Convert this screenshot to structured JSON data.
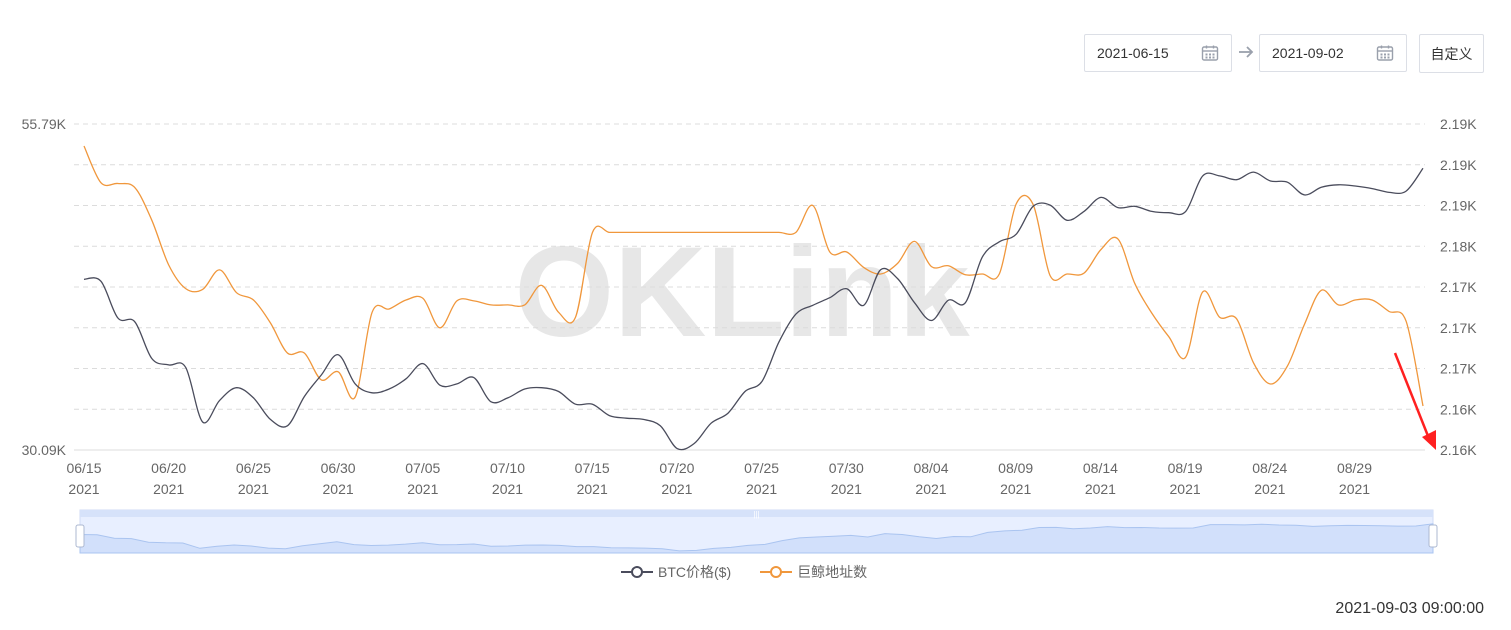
{
  "controls": {
    "start_date": "2021-06-15",
    "end_date": "2021-09-02",
    "custom_label": "自定义",
    "arrow_icon": "arrow-right-icon",
    "calendar_icon": "calendar-icon"
  },
  "watermark": "OKLink",
  "timestamp": "2021-09-03 09:00:00",
  "colors": {
    "btc": "#4a4c5c",
    "whale": "#f0973c",
    "grid": "#dcdcdc",
    "annotation": "#ff2020"
  },
  "chart_data": {
    "type": "line",
    "x_ticks": [
      [
        "06/15",
        "2021"
      ],
      [
        "06/20",
        "2021"
      ],
      [
        "06/25",
        "2021"
      ],
      [
        "06/30",
        "2021"
      ],
      [
        "07/05",
        "2021"
      ],
      [
        "07/10",
        "2021"
      ],
      [
        "07/15",
        "2021"
      ],
      [
        "07/20",
        "2021"
      ],
      [
        "07/25",
        "2021"
      ],
      [
        "07/30",
        "2021"
      ],
      [
        "08/04",
        "2021"
      ],
      [
        "08/09",
        "2021"
      ],
      [
        "08/14",
        "2021"
      ],
      [
        "08/19",
        "2021"
      ],
      [
        "08/24",
        "2021"
      ],
      [
        "08/29",
        "2021"
      ]
    ],
    "x_start": "2021-06-15",
    "x_end": "2021-09-02",
    "y_left": {
      "min": 30090,
      "max": 55790,
      "min_label": "30.09K",
      "max_label": "55.79K"
    },
    "y_right": {
      "min": 2155,
      "max": 2195,
      "labels": [
        "2.19K",
        "2.19K",
        "2.19K",
        "2.18K",
        "2.17K",
        "2.17K",
        "2.17K",
        "2.16K",
        "2.16K"
      ]
    },
    "legend": [
      "BTC价格($)",
      "巨鲸地址数"
    ],
    "series": [
      {
        "name": "BTC价格($)",
        "axis": "left",
        "points": [
          [
            "2021-06-15",
            43550
          ],
          [
            "2021-06-16",
            43400
          ],
          [
            "2021-06-17",
            40500
          ],
          [
            "2021-06-18",
            40200
          ],
          [
            "2021-06-19",
            37300
          ],
          [
            "2021-06-20",
            36800
          ],
          [
            "2021-06-21",
            36600
          ],
          [
            "2021-06-22",
            32300
          ],
          [
            "2021-06-23",
            34000
          ],
          [
            "2021-06-24",
            35000
          ],
          [
            "2021-06-25",
            34200
          ],
          [
            "2021-06-26",
            32500
          ],
          [
            "2021-06-27",
            32000
          ],
          [
            "2021-06-28",
            34300
          ],
          [
            "2021-06-29",
            36000
          ],
          [
            "2021-06-30",
            37600
          ],
          [
            "2021-07-01",
            35300
          ],
          [
            "2021-07-02",
            34600
          ],
          [
            "2021-07-03",
            34900
          ],
          [
            "2021-07-04",
            35700
          ],
          [
            "2021-07-05",
            36900
          ],
          [
            "2021-07-06",
            35200
          ],
          [
            "2021-07-07",
            35300
          ],
          [
            "2021-07-08",
            35800
          ],
          [
            "2021-07-09",
            33900
          ],
          [
            "2021-07-10",
            34200
          ],
          [
            "2021-07-11",
            34900
          ],
          [
            "2021-07-12",
            35000
          ],
          [
            "2021-07-13",
            34700
          ],
          [
            "2021-07-14",
            33700
          ],
          [
            "2021-07-15",
            33700
          ],
          [
            "2021-07-16",
            32800
          ],
          [
            "2021-07-17",
            32600
          ],
          [
            "2021-07-18",
            32500
          ],
          [
            "2021-07-19",
            32000
          ],
          [
            "2021-07-20",
            30200
          ],
          [
            "2021-07-21",
            30600
          ],
          [
            "2021-07-22",
            32200
          ],
          [
            "2021-07-23",
            33000
          ],
          [
            "2021-07-24",
            34700
          ],
          [
            "2021-07-25",
            35500
          ],
          [
            "2021-07-26",
            38600
          ],
          [
            "2021-07-27",
            40800
          ],
          [
            "2021-07-28",
            41500
          ],
          [
            "2021-07-29",
            42100
          ],
          [
            "2021-07-30",
            42800
          ],
          [
            "2021-07-31",
            41500
          ],
          [
            "2021-08-01",
            44300
          ],
          [
            "2021-08-02",
            43600
          ],
          [
            "2021-08-03",
            41700
          ],
          [
            "2021-08-04",
            40300
          ],
          [
            "2021-08-05",
            41900
          ],
          [
            "2021-08-06",
            41700
          ],
          [
            "2021-08-07",
            45300
          ],
          [
            "2021-08-08",
            46500
          ],
          [
            "2021-08-09",
            47100
          ],
          [
            "2021-08-10",
            49300
          ],
          [
            "2021-08-11",
            49400
          ],
          [
            "2021-08-12",
            48200
          ],
          [
            "2021-08-13",
            48900
          ],
          [
            "2021-08-14",
            50000
          ],
          [
            "2021-08-15",
            49200
          ],
          [
            "2021-08-16",
            49300
          ],
          [
            "2021-08-17",
            48900
          ],
          [
            "2021-08-18",
            48800
          ],
          [
            "2021-08-19",
            48900
          ],
          [
            "2021-08-20",
            51700
          ],
          [
            "2021-08-21",
            51700
          ],
          [
            "2021-08-22",
            51400
          ],
          [
            "2021-08-23",
            52000
          ],
          [
            "2021-08-24",
            51300
          ],
          [
            "2021-08-25",
            51200
          ],
          [
            "2021-08-26",
            50200
          ],
          [
            "2021-08-27",
            50800
          ],
          [
            "2021-08-28",
            51000
          ],
          [
            "2021-08-29",
            50900
          ],
          [
            "2021-08-30",
            50700
          ],
          [
            "2021-08-31",
            50400
          ],
          [
            "2021-09-01",
            50500
          ],
          [
            "2021-09-02",
            52300
          ]
        ]
      },
      {
        "name": "巨鲸地址数",
        "axis": "right",
        "points": [
          [
            "2021-06-15",
            2192.3
          ],
          [
            "2021-06-16",
            2187.8
          ],
          [
            "2021-06-17",
            2187.7
          ],
          [
            "2021-06-18",
            2187.2
          ],
          [
            "2021-06-19",
            2183.2
          ],
          [
            "2021-06-20",
            2177.7
          ],
          [
            "2021-06-21",
            2174.8
          ],
          [
            "2021-06-22",
            2174.7
          ],
          [
            "2021-06-23",
            2177.1
          ],
          [
            "2021-06-24",
            2174.3
          ],
          [
            "2021-06-25",
            2173.4
          ],
          [
            "2021-06-26",
            2170.6
          ],
          [
            "2021-06-27",
            2166.9
          ],
          [
            "2021-06-28",
            2166.9
          ],
          [
            "2021-06-29",
            2163.6
          ],
          [
            "2021-06-30",
            2164.6
          ],
          [
            "2021-07-01",
            2161.5
          ],
          [
            "2021-07-02",
            2171.9
          ],
          [
            "2021-07-03",
            2172.3
          ],
          [
            "2021-07-04",
            2173.4
          ],
          [
            "2021-07-05",
            2173.6
          ],
          [
            "2021-07-06",
            2170.0
          ],
          [
            "2021-07-07",
            2173.3
          ],
          [
            "2021-07-08",
            2173.3
          ],
          [
            "2021-07-09",
            2172.8
          ],
          [
            "2021-07-10",
            2172.8
          ],
          [
            "2021-07-11",
            2172.8
          ],
          [
            "2021-07-12",
            2175.2
          ],
          [
            "2021-07-13",
            2171.9
          ],
          [
            "2021-07-14",
            2171.3
          ],
          [
            "2021-07-15",
            2181.7
          ],
          [
            "2021-07-16",
            2181.7
          ],
          [
            "2021-07-17",
            2181.7
          ],
          [
            "2021-07-18",
            2181.7
          ],
          [
            "2021-07-19",
            2181.7
          ],
          [
            "2021-07-20",
            2181.7
          ],
          [
            "2021-07-21",
            2181.7
          ],
          [
            "2021-07-22",
            2181.7
          ],
          [
            "2021-07-23",
            2181.7
          ],
          [
            "2021-07-24",
            2181.7
          ],
          [
            "2021-07-25",
            2181.7
          ],
          [
            "2021-07-26",
            2181.7
          ],
          [
            "2021-07-27",
            2181.7
          ],
          [
            "2021-07-28",
            2185.0
          ],
          [
            "2021-07-29",
            2179.3
          ],
          [
            "2021-07-30",
            2179.3
          ],
          [
            "2021-07-31",
            2177.4
          ],
          [
            "2021-08-01",
            2176.6
          ],
          [
            "2021-08-02",
            2177.9
          ],
          [
            "2021-08-03",
            2180.6
          ],
          [
            "2021-08-04",
            2177.5
          ],
          [
            "2021-08-05",
            2177.6
          ],
          [
            "2021-08-06",
            2176.5
          ],
          [
            "2021-08-07",
            2176.6
          ],
          [
            "2021-08-08",
            2176.6
          ],
          [
            "2021-08-09",
            2185.2
          ],
          [
            "2021-08-10",
            2185.1
          ],
          [
            "2021-08-11",
            2176.4
          ],
          [
            "2021-08-12",
            2176.6
          ],
          [
            "2021-08-13",
            2176.7
          ],
          [
            "2021-08-14",
            2179.6
          ],
          [
            "2021-08-15",
            2180.9
          ],
          [
            "2021-08-16",
            2175.4
          ],
          [
            "2021-08-17",
            2171.8
          ],
          [
            "2021-08-18",
            2168.9
          ],
          [
            "2021-08-19",
            2166.4
          ],
          [
            "2021-08-20",
            2174.4
          ],
          [
            "2021-08-21",
            2171.3
          ],
          [
            "2021-08-22",
            2171.1
          ],
          [
            "2021-08-23",
            2165.7
          ],
          [
            "2021-08-24",
            2163.1
          ],
          [
            "2021-08-25",
            2165.3
          ],
          [
            "2021-08-26",
            2170.4
          ],
          [
            "2021-08-27",
            2174.6
          ],
          [
            "2021-08-28",
            2172.8
          ],
          [
            "2021-08-29",
            2173.4
          ],
          [
            "2021-08-30",
            2173.4
          ],
          [
            "2021-08-31",
            2172.0
          ],
          [
            "2021-09-01",
            2170.8
          ],
          [
            "2021-09-02",
            2160.4
          ]
        ]
      }
    ],
    "grid": true,
    "legend_position": "bottom-center"
  }
}
